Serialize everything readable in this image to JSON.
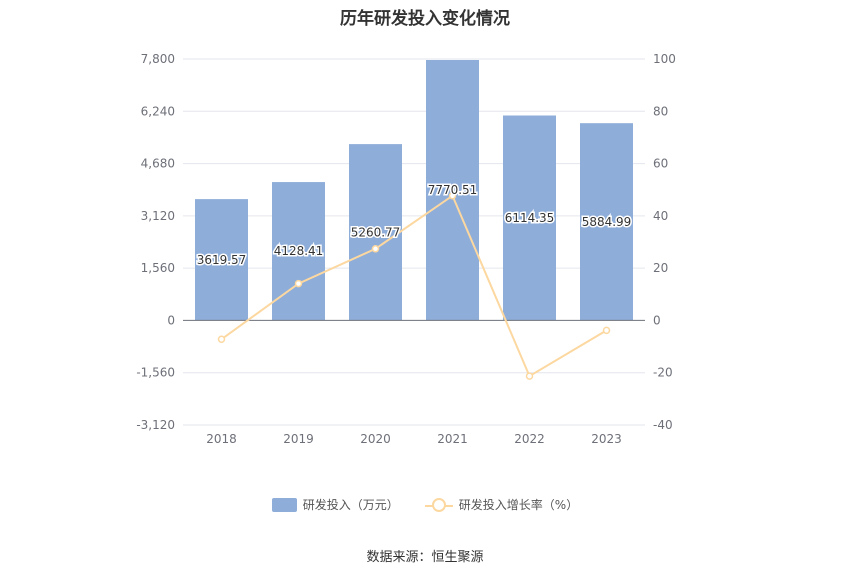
{
  "chart_data": {
    "type": "bar",
    "title": "历年研发投入变化情况",
    "categories": [
      "2018",
      "2019",
      "2020",
      "2021",
      "2022",
      "2023"
    ],
    "series": [
      {
        "name": "研发投入（万元）",
        "type": "bar",
        "axis": "left",
        "values": [
          3619.57,
          4128.41,
          5260.77,
          7770.51,
          6114.35,
          5884.99
        ],
        "labels": [
          "3619.57",
          "4128.41",
          "5260.77",
          "7770.51",
          "6114.35",
          "5884.99"
        ],
        "color": "#8eadd9"
      },
      {
        "name": "研发投入增长率（%）",
        "type": "line",
        "axis": "right",
        "values": [
          -7.2,
          14.1,
          27.4,
          47.7,
          -21.3,
          -3.8
        ],
        "color": "#fcd8a0"
      }
    ],
    "y_left": {
      "ylim": [
        -3120,
        7800
      ],
      "ticks": [
        -3120,
        -1560,
        0,
        1560,
        3120,
        4680,
        6240,
        7800
      ],
      "tick_labels": [
        "-3,120",
        "-1,560",
        "0",
        "1,560",
        "3,120",
        "4,680",
        "6,240",
        "7,800"
      ]
    },
    "y_right": {
      "ylim": [
        -40,
        100
      ],
      "ticks": [
        -40,
        -20,
        0,
        20,
        40,
        60,
        80,
        100
      ],
      "tick_labels": [
        "-40",
        "-20",
        "0",
        "20",
        "40",
        "60",
        "80",
        "100"
      ]
    },
    "grid": true,
    "legend_position": "bottom-center"
  },
  "legend": {
    "bar_label": "研发投入（万元）",
    "line_label": "研发投入增长率（%）"
  },
  "source": "数据来源：恒生聚源"
}
